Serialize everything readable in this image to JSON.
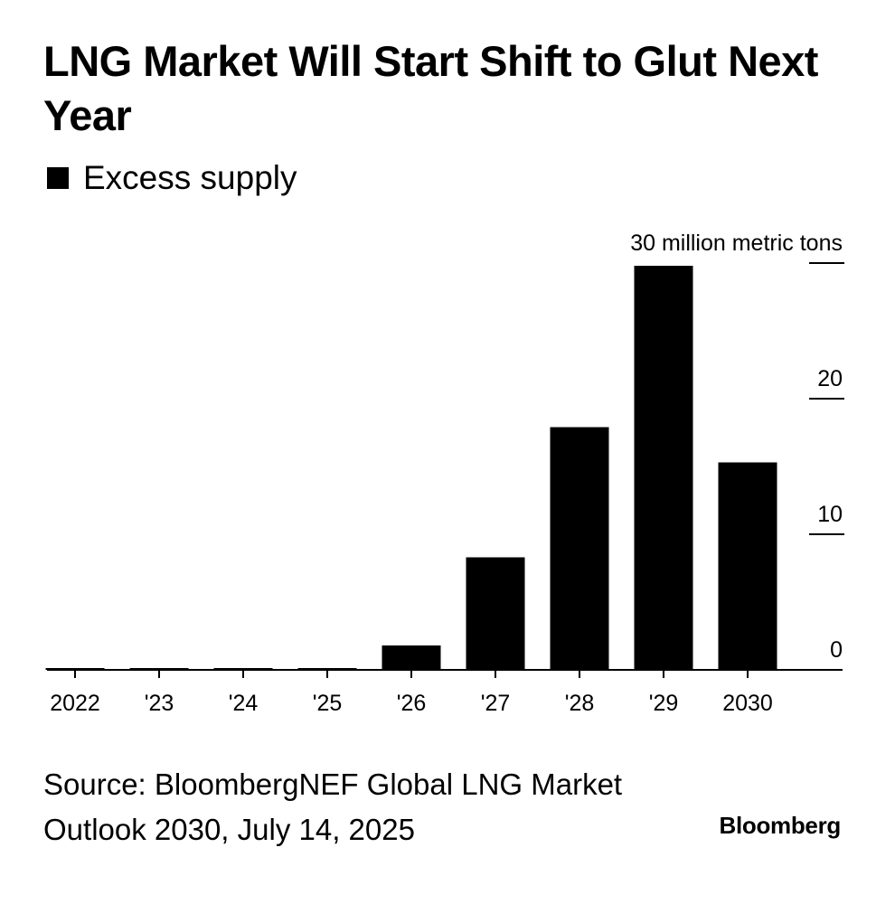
{
  "header": {
    "title": "LNG Market Will Start Shift to Glut Next Year"
  },
  "legend": {
    "label": "Excess supply",
    "color": "#000000"
  },
  "chart_data": {
    "type": "bar",
    "title": "LNG Market Will Start Shift to Glut Next Year",
    "categories": [
      "2022",
      "'23",
      "'24",
      "'25",
      "'26",
      "'27",
      "'28",
      "'29",
      "2030"
    ],
    "series": [
      {
        "name": "Excess supply",
        "values": [
          0,
          0,
          0,
          0,
          1.8,
          8.3,
          17.9,
          29.8,
          15.3
        ]
      }
    ],
    "ylabel": "30 million metric tons",
    "yticks": [
      {
        "value": 0,
        "label": "0"
      },
      {
        "value": 10,
        "label": "10"
      },
      {
        "value": 20,
        "label": "20"
      },
      {
        "value": 30,
        "label": "30 million metric tons"
      }
    ],
    "ylim": [
      0,
      30
    ],
    "y_axis_position": "right",
    "grid": false
  },
  "footer": {
    "source": "Source: BloombergNEF Global LNG Market Outlook 2030, July 14, 2025",
    "brand": "Bloomberg"
  }
}
